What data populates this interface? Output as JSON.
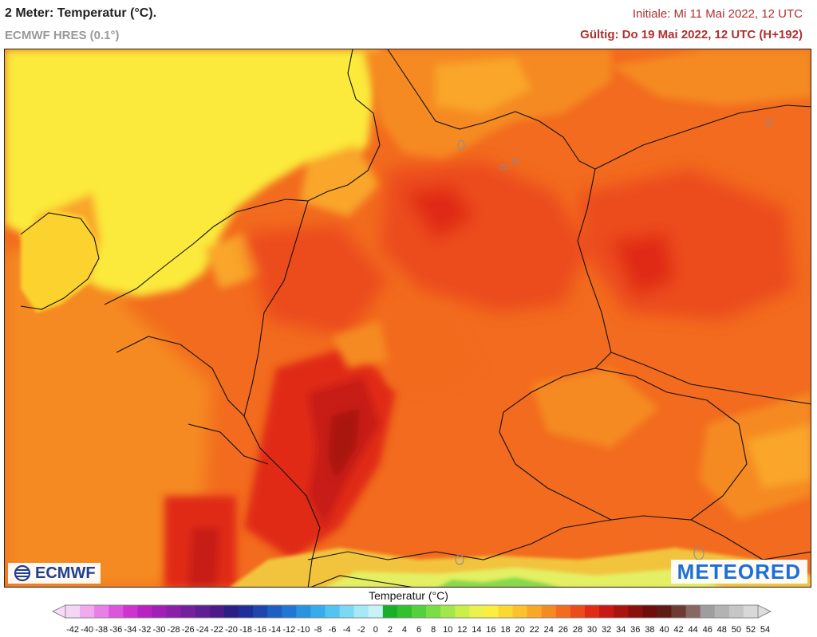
{
  "header": {
    "title": "2 Meter: Temperatur (°C).",
    "model": "ECMWF HRES (0.1°)",
    "init": "Initiale: Mi 11 Mai 2022, 12 UTC",
    "valid": "Gültig: Do 19 Mai 2022, 12 UTC (H+192)"
  },
  "logos": {
    "left": "ECMWF",
    "right": "METEORED"
  },
  "legend": {
    "title": "Temperatur (°C)",
    "ticks": [
      "-42",
      "-40",
      "-38",
      "-36",
      "-34",
      "-32",
      "-30",
      "-28",
      "-26",
      "-24",
      "-22",
      "-20",
      "-18",
      "-16",
      "-14",
      "-12",
      "-10",
      "-8",
      "-6",
      "-4",
      "-2",
      "0",
      "2",
      "4",
      "6",
      "8",
      "10",
      "12",
      "14",
      "16",
      "18",
      "20",
      "22",
      "24",
      "26",
      "28",
      "30",
      "32",
      "34",
      "36",
      "38",
      "40",
      "42",
      "44",
      "46",
      "48",
      "50",
      "52",
      "54"
    ],
    "colors": [
      "#f6d6f6",
      "#f0a8ef",
      "#e87ee6",
      "#dd55dc",
      "#cf33cf",
      "#b822c3",
      "#a01fb6",
      "#8a1fa8",
      "#74209c",
      "#5f1f90",
      "#4b1c86",
      "#2b1f86",
      "#1f2f99",
      "#1e47ad",
      "#1f5fc2",
      "#2077d3",
      "#2a93df",
      "#38acea",
      "#52c4f0",
      "#7cd9f3",
      "#a6e9f6",
      "#c7f3f7",
      "#18b02a",
      "#33c12f",
      "#53d13b",
      "#7adf45",
      "#a2e84c",
      "#c9ef48",
      "#ecf24b",
      "#fcee3c",
      "#fcd932",
      "#fbc22b",
      "#f8a726",
      "#f58a22",
      "#f26b1e",
      "#ec4c1a",
      "#e02c15",
      "#c81a12",
      "#a9140f",
      "#8a100d",
      "#6f0d0b",
      "#5e1a15",
      "#6e3a34",
      "#876863",
      "#9e9e9e",
      "#b3b3b3",
      "#c6c6c6",
      "#d8d8d8"
    ],
    "under_color": "#fbd9f9",
    "over_color": "#dcdcdc"
  },
  "map": {
    "field": "2 m temperature",
    "colors": {
      "sea_north": "#fbe93a",
      "uk": "#fcd22f",
      "t22": "#f9a62a",
      "t24": "#f58a22",
      "t26": "#f26b1e",
      "t28": "#ec4c1a",
      "t30": "#e02c15",
      "t32": "#c81a12",
      "t34": "#a9140f",
      "alps_low": "#f2c43c",
      "alps_high": "#e3f064",
      "alps_green": "#86d94b",
      "border": "#111111",
      "lake": "#7b8ea8"
    }
  }
}
